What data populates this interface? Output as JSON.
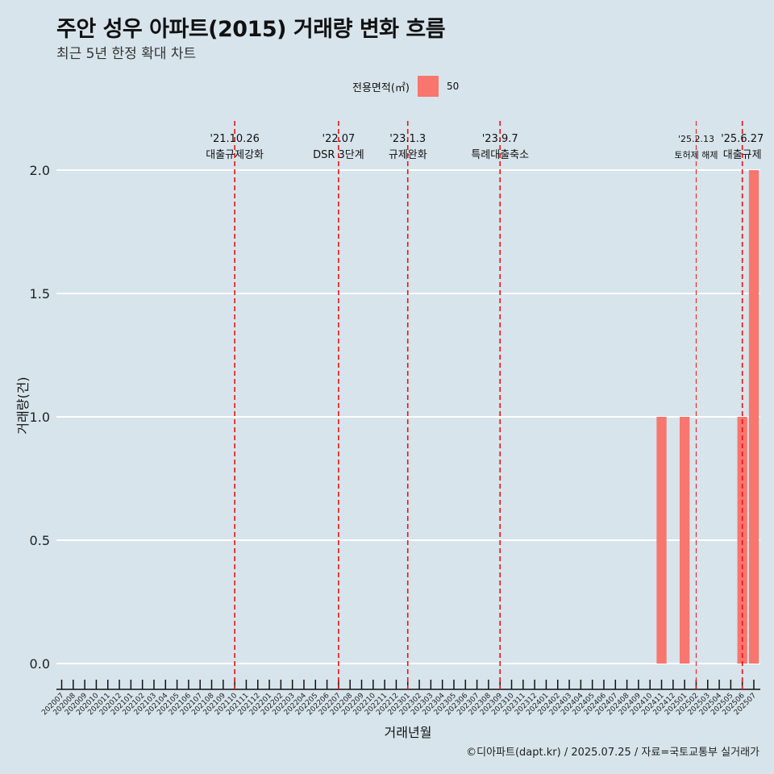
{
  "header": {
    "title": "주안 성우 아파트(2015) 거래량 변화 흐름",
    "subtitle": "최근 5년 한정 확대 차트"
  },
  "legend": {
    "title": "전용면적(㎡)",
    "items": [
      {
        "label": "50",
        "color": "#f8766d"
      }
    ]
  },
  "caption": "©디아파트(dapt.kr) / 2025.07.25 / 자료=국토교통부 실거래가",
  "chart_data": {
    "type": "bar",
    "xlabel": "거래년월",
    "ylabel": "거래량(건)",
    "ylim": [
      0,
      2
    ],
    "yticks": [
      0.0,
      0.5,
      1.0,
      1.5,
      2.0
    ],
    "ytick_labels": [
      "0.0",
      "0.5",
      "1.0",
      "1.5",
      "2.0"
    ],
    "grid": true,
    "legend_position": "top",
    "categories": [
      "202007",
      "202008",
      "202009",
      "202010",
      "202011",
      "202012",
      "202101",
      "202102",
      "202103",
      "202104",
      "202105",
      "202106",
      "202107",
      "202108",
      "202109",
      "202110",
      "202111",
      "202112",
      "202201",
      "202202",
      "202203",
      "202204",
      "202205",
      "202206",
      "202207",
      "202208",
      "202209",
      "202210",
      "202211",
      "202212",
      "202301",
      "202302",
      "202303",
      "202304",
      "202305",
      "202306",
      "202307",
      "202308",
      "202309",
      "202310",
      "202311",
      "202312",
      "202401",
      "202402",
      "202403",
      "202404",
      "202405",
      "202406",
      "202407",
      "202408",
      "202409",
      "202410",
      "202411",
      "202412",
      "202501",
      "202502",
      "202503",
      "202504",
      "202505",
      "202506",
      "202507"
    ],
    "series": [
      {
        "name": "50",
        "color": "#f8766d",
        "values": [
          0,
          0,
          0,
          0,
          0,
          0,
          0,
          0,
          0,
          0,
          0,
          0,
          0,
          0,
          0,
          0,
          0,
          0,
          0,
          0,
          0,
          0,
          0,
          0,
          0,
          0,
          0,
          0,
          0,
          0,
          0,
          0,
          0,
          0,
          0,
          0,
          0,
          0,
          0,
          0,
          0,
          0,
          0,
          0,
          0,
          0,
          0,
          0,
          0,
          0,
          0,
          0,
          1,
          0,
          1,
          0,
          0,
          0,
          0,
          1,
          2
        ]
      }
    ],
    "bar_counts_note_removed": null,
    "events": [
      {
        "date": "'21.10.26",
        "label": "대출규제강화",
        "x": "202110"
      },
      {
        "date": "'22.07",
        "label": "DSR 3단계",
        "x": "202207"
      },
      {
        "date": "'23.1.3",
        "label": "규제완화",
        "x": "202301"
      },
      {
        "date": "'23.9.7",
        "label": "특례대출축소",
        "x": "202309"
      },
      {
        "date": "'25.2.13",
        "label": "토허제 해제",
        "x": "202502",
        "small": true
      },
      {
        "date": "'25.6.27",
        "label": "대출규제",
        "x": "202506"
      }
    ]
  }
}
